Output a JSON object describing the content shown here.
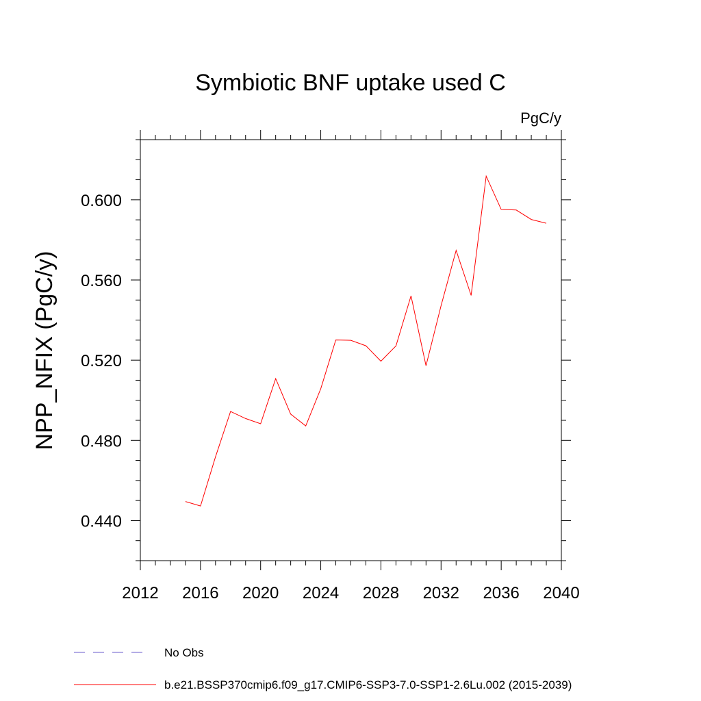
{
  "chart_data": {
    "type": "line",
    "title": "Symbiotic BNF uptake used C",
    "units": "PgC/y",
    "ylabel": "NPP_NFIX  (PgC/y)",
    "xlabel": "",
    "xlim": [
      2012,
      2040
    ],
    "ylim": [
      0.42,
      0.63
    ],
    "x_ticks": [
      2012,
      2016,
      2020,
      2024,
      2028,
      2032,
      2036,
      2040
    ],
    "y_ticks": [
      0.44,
      0.48,
      0.52,
      0.56,
      0.6
    ],
    "x_tick_labels": [
      "2012",
      "2016",
      "2020",
      "2024",
      "2028",
      "2032",
      "2036",
      "2040"
    ],
    "y_tick_labels": [
      "0.440",
      "0.480",
      "0.520",
      "0.560",
      "0.600"
    ],
    "grid": false,
    "series": [
      {
        "name": "b.e21.BSSP370cmip6.f09_g17.CMIP6-SSP3-7.0-SSP1-2.6Lu.002 (2015-2039)",
        "color": "#ff0000",
        "x": [
          2015,
          2016,
          2017,
          2018,
          2019,
          2020,
          2021,
          2022,
          2023,
          2024,
          2025,
          2026,
          2027,
          2028,
          2029,
          2030,
          2031,
          2032,
          2033,
          2034,
          2035,
          2036,
          2037,
          2038,
          2039
        ],
        "y": [
          0.4495,
          0.4473,
          0.4718,
          0.4944,
          0.4909,
          0.4883,
          0.5108,
          0.4931,
          0.4872,
          0.5058,
          0.5301,
          0.5299,
          0.5272,
          0.5195,
          0.5271,
          0.5521,
          0.5172,
          0.5472,
          0.5748,
          0.5523,
          0.6118,
          0.5952,
          0.5949,
          0.5902,
          0.5883
        ]
      }
    ],
    "legend": [
      {
        "label": "No Obs",
        "color": "#6a5acd",
        "style": "dashed"
      },
      {
        "label": "b.e21.BSSP370cmip6.f09_g17.CMIP6-SSP3-7.0-SSP1-2.6Lu.002 (2015-2039)",
        "color": "#ff0000",
        "style": "solid"
      }
    ],
    "legend_position": "bottom"
  }
}
